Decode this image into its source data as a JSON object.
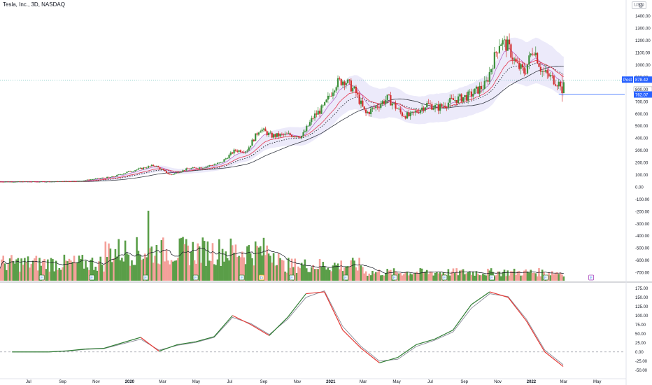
{
  "header": {
    "title": "Tesla, Inc., 3D, NASDAQ",
    "currency": "USD"
  },
  "colors": {
    "up": "#3a8f3a",
    "down": "#d32f2f",
    "vol_up": "#5a9e48",
    "vol_down": "#f4a09a",
    "ema_fast": "#9c27b0",
    "ema_mid": "#e53950",
    "sma_slow": "#363a45",
    "band": "#dcd9f5",
    "macd": "#2e7d32",
    "signal": "#e53935",
    "price_tag": "#2962ff"
  },
  "chart_data": [
    {
      "type": "candlestick",
      "title": "Tesla, Inc., 3D, NASDAQ",
      "x_ticks": [
        "Jul",
        "Sep",
        "Nov",
        "2020",
        "Mar",
        "May",
        "Jul",
        "Sep",
        "Nov",
        "2021",
        "Mar",
        "May",
        "Jul",
        "Sep",
        "Nov",
        "2022",
        "Mar",
        "May"
      ],
      "y_ticks": [
        1400,
        1300,
        1200,
        1100,
        1000,
        900,
        800,
        700,
        600,
        500,
        400,
        300,
        200,
        100,
        0,
        -100,
        -200,
        -300,
        -400,
        -500,
        -600,
        -700
      ],
      "ylim": [
        -760,
        1430
      ],
      "close_series": [
        {
          "date": "2019-06",
          "close": 45
        },
        {
          "date": "2019-08",
          "close": 45
        },
        {
          "date": "2019-10",
          "close": 50
        },
        {
          "date": "2019-11",
          "close": 70
        },
        {
          "date": "2019-12",
          "close": 85
        },
        {
          "date": "2020-01",
          "close": 130
        },
        {
          "date": "2020-02-15",
          "close": 180
        },
        {
          "date": "2020-03-15",
          "close": 100
        },
        {
          "date": "2020-04-15",
          "close": 150
        },
        {
          "date": "2020-05-15",
          "close": 165
        },
        {
          "date": "2020-06-15",
          "close": 200
        },
        {
          "date": "2020-07-10",
          "close": 300
        },
        {
          "date": "2020-08-01",
          "close": 300
        },
        {
          "date": "2020-08-25",
          "close": 480
        },
        {
          "date": "2020-09-15",
          "close": 420
        },
        {
          "date": "2020-10-15",
          "close": 430
        },
        {
          "date": "2020-11-10",
          "close": 420
        },
        {
          "date": "2020-12-01",
          "close": 580
        },
        {
          "date": "2020-12-20",
          "close": 660
        },
        {
          "date": "2021-01-10",
          "close": 850
        },
        {
          "date": "2021-01-26",
          "close": 880
        },
        {
          "date": "2021-02-15",
          "close": 780
        },
        {
          "date": "2021-03-05",
          "close": 600
        },
        {
          "date": "2021-03-25",
          "close": 660
        },
        {
          "date": "2021-04-15",
          "close": 730
        },
        {
          "date": "2021-05-10",
          "close": 600
        },
        {
          "date": "2021-05-25",
          "close": 580
        },
        {
          "date": "2021-06-25",
          "close": 680
        },
        {
          "date": "2021-07-15",
          "close": 650
        },
        {
          "date": "2021-08-10",
          "close": 710
        },
        {
          "date": "2021-09-10",
          "close": 750
        },
        {
          "date": "2021-10-10",
          "close": 840
        },
        {
          "date": "2021-10-25",
          "close": 1050
        },
        {
          "date": "2021-11-05",
          "close": 1200
        },
        {
          "date": "2021-11-20",
          "close": 1150
        },
        {
          "date": "2021-12-05",
          "close": 1000
        },
        {
          "date": "2021-12-20",
          "close": 940
        },
        {
          "date": "2022-01-05",
          "close": 1150
        },
        {
          "date": "2022-01-20",
          "close": 950
        },
        {
          "date": "2022-02-05",
          "close": 900
        },
        {
          "date": "2022-02-20",
          "close": 850
        },
        {
          "date": "2022-03-01",
          "close": 870
        }
      ],
      "price_labels": [
        {
          "label": "Post",
          "value": "878.42"
        },
        {
          "label": "",
          "value": "800.00"
        },
        {
          "label": "",
          "value": "762.07"
        }
      ]
    },
    {
      "type": "bar",
      "series_name": "Volume",
      "note": "volume bars drawn at the bottom of the price pane with moving average line",
      "earnings_markers": [
        "E",
        "E",
        "E",
        "E",
        "E",
        "D",
        "E",
        "E",
        "E",
        "E",
        "E",
        "E",
        "E"
      ]
    },
    {
      "type": "line",
      "series": [
        {
          "name": "MACD",
          "values": [
            0,
            0,
            0,
            3,
            8,
            10,
            25,
            40,
            2,
            20,
            28,
            42,
            100,
            75,
            45,
            95,
            160,
            165,
            60,
            10,
            -30,
            -15,
            20,
            35,
            60,
            130,
            165,
            150,
            85,
            0,
            -40
          ]
        },
        {
          "name": "Signal",
          "values": [
            0,
            0,
            0,
            2,
            7,
            9,
            22,
            35,
            5,
            18,
            26,
            40,
            95,
            78,
            48,
            90,
            150,
            168,
            70,
            15,
            -25,
            -20,
            15,
            32,
            55,
            120,
            160,
            152,
            90,
            5,
            -35
          ]
        }
      ],
      "y_ticks": [
        "175.00",
        "150.00",
        "125.00",
        "100.00",
        "75.00",
        "50.00",
        "25.00",
        "0.00",
        "-25.00",
        "-50.00"
      ],
      "ylim": [
        -62,
        188
      ]
    }
  ]
}
